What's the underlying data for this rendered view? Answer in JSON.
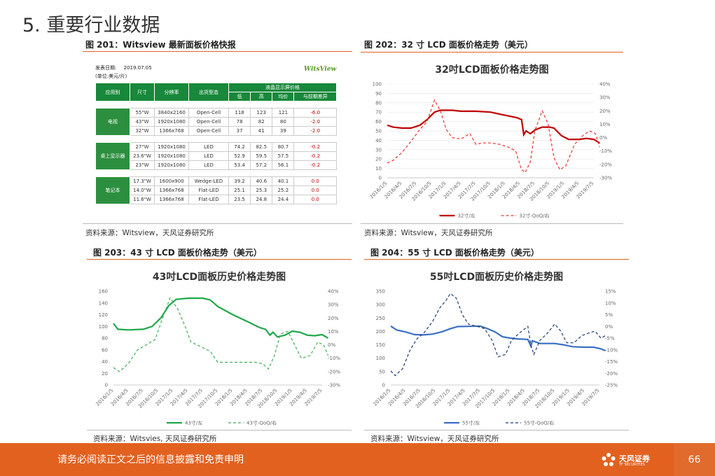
{
  "page_title": "5. 重要行业数据",
  "footer": {
    "disclaimer": "请务必阅读正文之后的信息披露和免责申明",
    "page_number": "66",
    "logo_cn": "天风证券",
    "logo_en": "TF SECURITIES"
  },
  "panels": {
    "fig201": {
      "title": "图 201：Witsview 最新面板价格快报",
      "source": "资料来源：Witsview，天风证券研究所"
    },
    "fig202": {
      "title": "图 202：32 寸 LCD 面板价格走势（美元）",
      "source": "资料来源：Witsview，天风证券研究所"
    },
    "fig203": {
      "title": "图 203：43 寸 LCD 面板价格走势（美元）",
      "source": "资料来源：Witsvies, 天风证券研究所"
    },
    "fig204": {
      "title": "图 204：55 寸 LCD 面板价格走势（美元）",
      "source": "资料来源：Witsview，天风证券研究所"
    }
  },
  "price_table": {
    "release_date_label": "发表日期:",
    "release_date": "2019.07.05",
    "unit": "(单位:美元/片)",
    "logo": "WitsView",
    "headers": [
      "应用别",
      "尺寸",
      "分辨率",
      "出货型态"
    ],
    "group_header": "液晶显示屏价格",
    "sub_headers": [
      "低",
      "高",
      "均价",
      "与前期差异"
    ],
    "groups": [
      {
        "name": "电视",
        "rows": [
          [
            "55\"W",
            "3840x2160",
            "Open-Cell",
            "118",
            "123",
            "121",
            "-6.0"
          ],
          [
            "43\"W",
            "1920x1080",
            "Open-Cell",
            "78",
            "82",
            "80",
            "-2.0"
          ],
          [
            "32\"W",
            "1366x768",
            "Open-Cell",
            "37",
            "41",
            "39",
            "-2.0"
          ]
        ]
      },
      {
        "name": "桌上显示器",
        "rows": [
          [
            "27\"W",
            "1920x1080",
            "LED",
            "74.2",
            "82.5",
            "80.7",
            "-0.2"
          ],
          [
            "23.6\"W",
            "1920x1080",
            "LED",
            "52.9",
            "59.5",
            "57.5",
            "-0.2"
          ],
          [
            "23\"W",
            "1920x1080",
            "LED",
            "53.4",
            "57.2",
            "56.1",
            "-0.2"
          ]
        ]
      },
      {
        "name": "笔记本",
        "rows": [
          [
            "17.3\"W",
            "1600x900",
            "Wedge-LED",
            "39.2",
            "40.6",
            "40.1",
            "0.0"
          ],
          [
            "14.0\"W",
            "1366x768",
            "Flat-LED",
            "25.1",
            "25.3",
            "25.2",
            "0.0"
          ],
          [
            "11.6\"W",
            "1366x768",
            "Flat-LED",
            "23.5",
            "24.8",
            "24.4",
            "0.0"
          ]
        ]
      }
    ]
  },
  "chart_data": [
    {
      "type": "line",
      "title": "32吋LCD面板价格走势图",
      "x_ticks": [
        "2016/1/5",
        "2016/4/5",
        "2016/7/5",
        "2016/10/5",
        "2017/1/5",
        "2017/4/5",
        "2017/7/5",
        "2017/10/5",
        "2018/1/5",
        "2018/4/5",
        "2018/7/5",
        "2018/10/5",
        "2019/1/5",
        "2019/4/5",
        "2019/7/5"
      ],
      "ylim": [
        0,
        100
      ],
      "y_ticks": [
        0,
        10,
        20,
        30,
        40,
        50,
        60,
        70,
        80,
        90,
        100
      ],
      "ylim2": [
        -30,
        40
      ],
      "y2_ticks": [
        "40%",
        "30%",
        "20%",
        "10%",
        "0%",
        "-10%",
        "-20%",
        "-30%"
      ],
      "grid": true,
      "legend": "bottom",
      "series": [
        {
          "name": "32寸/左",
          "axis": "left",
          "color": "#c00000",
          "dash": false,
          "points": [
            [
              0,
              56
            ],
            [
              0.4,
              54
            ],
            [
              1,
              53
            ],
            [
              1.6,
              53
            ],
            [
              2.2,
              56
            ],
            [
              2.7,
              62
            ],
            [
              3.2,
              70
            ],
            [
              3.6,
              72
            ],
            [
              4.4,
              72
            ],
            [
              5,
              71
            ],
            [
              6,
              71
            ],
            [
              7,
              70
            ],
            [
              7.6,
              68
            ],
            [
              8.2,
              66
            ],
            [
              8.8,
              64
            ],
            [
              9.1,
              62
            ],
            [
              9.25,
              46
            ],
            [
              9.4,
              50
            ],
            [
              9.7,
              47
            ],
            [
              10,
              51
            ],
            [
              10.5,
              54
            ],
            [
              11,
              54
            ],
            [
              11.3,
              53
            ],
            [
              11.8,
              45
            ],
            [
              12.3,
              41
            ],
            [
              13,
              41
            ],
            [
              13.5,
              42
            ],
            [
              14,
              41
            ],
            [
              14.4,
              37
            ]
          ]
        },
        {
          "name": "32寸-QoQ/右",
          "axis": "right",
          "color": "#e3342f",
          "dash": true,
          "points": [
            [
              0,
              -19
            ],
            [
              0.4,
              -17
            ],
            [
              1,
              -11
            ],
            [
              1.6,
              -3
            ],
            [
              2.2,
              6
            ],
            [
              2.7,
              12
            ],
            [
              3.2,
              28
            ],
            [
              3.6,
              20
            ],
            [
              4,
              6
            ],
            [
              4.4,
              0
            ],
            [
              5,
              -1
            ],
            [
              5.6,
              3
            ],
            [
              6,
              -5
            ],
            [
              6.5,
              -4
            ],
            [
              7,
              -4
            ],
            [
              7.6,
              -5
            ],
            [
              8.2,
              -7
            ],
            [
              8.7,
              -10
            ],
            [
              9.1,
              -24
            ],
            [
              9.35,
              -26
            ],
            [
              9.7,
              -18
            ],
            [
              10,
              5
            ],
            [
              10.5,
              20
            ],
            [
              10.9,
              10
            ],
            [
              11.3,
              -15
            ],
            [
              11.7,
              -24
            ],
            [
              12.1,
              -21
            ],
            [
              12.7,
              -5
            ],
            [
              13.2,
              1
            ],
            [
              13.7,
              5
            ],
            [
              14.1,
              3
            ],
            [
              14.4,
              -7
            ]
          ]
        }
      ]
    },
    {
      "type": "line",
      "title": "43吋LCD面板历史价格走势图",
      "x_ticks": [
        "2016/1/5",
        "2016/4/5",
        "2016/7/5",
        "2016/10/5",
        "2017/1/5",
        "2017/4/5",
        "2017/7/5",
        "2017/10/5",
        "2018/1/5",
        "2018/4/5",
        "2018/7/5",
        "2018/10/5",
        "2019/1/5",
        "2019/4/5",
        "2019/7/5"
      ],
      "ylim": [
        0,
        160
      ],
      "y_ticks": [
        0,
        20,
        40,
        60,
        80,
        100,
        120,
        140,
        160
      ],
      "ylim2": [
        -30,
        40
      ],
      "y2_ticks": [
        "40%",
        "30%",
        "20%",
        "10%",
        "0%",
        "-10%",
        "-20%",
        "-30%"
      ],
      "grid": false,
      "legend": "bottom",
      "series": [
        {
          "name": "43寸/左",
          "axis": "left",
          "color": "#1fa84a",
          "dash": false,
          "points": [
            [
              0,
              105
            ],
            [
              0.3,
              95
            ],
            [
              1,
              94
            ],
            [
              2,
              95
            ],
            [
              2.6,
              100
            ],
            [
              3.2,
              115
            ],
            [
              3.7,
              135
            ],
            [
              4.2,
              146
            ],
            [
              5,
              148
            ],
            [
              6,
              148
            ],
            [
              6.5,
              145
            ],
            [
              7,
              134
            ],
            [
              8,
              120
            ],
            [
              9,
              108
            ],
            [
              9.8,
              98
            ],
            [
              10.2,
              95
            ],
            [
              10.5,
              85
            ],
            [
              10.7,
              90
            ],
            [
              11,
              82
            ],
            [
              11.5,
              85
            ],
            [
              12,
              92
            ],
            [
              12.5,
              90
            ],
            [
              13,
              85
            ],
            [
              13.5,
              84
            ],
            [
              14,
              86
            ],
            [
              14.4,
              80
            ]
          ]
        },
        {
          "name": "43寸-QoQ/右",
          "axis": "right",
          "color": "#3dae58",
          "dash": true,
          "points": [
            [
              0,
              -17
            ],
            [
              0.4,
              -20
            ],
            [
              1,
              -14
            ],
            [
              1.6,
              -4
            ],
            [
              2.2,
              0
            ],
            [
              2.8,
              4
            ],
            [
              3.3,
              20
            ],
            [
              3.8,
              35
            ],
            [
              4.3,
              27
            ],
            [
              4.8,
              14
            ],
            [
              5.2,
              2
            ],
            [
              5.8,
              -1
            ],
            [
              6.5,
              -5
            ],
            [
              7,
              -13
            ],
            [
              7.6,
              -13
            ],
            [
              8.5,
              -13
            ],
            [
              9.5,
              -13
            ],
            [
              10,
              -14
            ],
            [
              10.4,
              -18
            ],
            [
              10.8,
              -8
            ],
            [
              11.2,
              8
            ],
            [
              11.7,
              10
            ],
            [
              12.2,
              -1
            ],
            [
              12.6,
              -10
            ],
            [
              13.2,
              -8
            ],
            [
              13.7,
              2
            ],
            [
              14.1,
              0
            ],
            [
              14.4,
              -8
            ]
          ]
        }
      ]
    },
    {
      "type": "line",
      "title": "55吋LCD面板历史价格走势图",
      "x_ticks": [
        "2016/1/5",
        "2016/4/5",
        "2016/7/5",
        "2016/10/5",
        "2017/1/5",
        "2017/4/5",
        "2017/7/5",
        "2017/10/5",
        "2018/1/5",
        "2018/4/5",
        "2018/7/5",
        "2018/10/5",
        "2019/1/5",
        "2019/4/5",
        "2019/7/5"
      ],
      "ylim": [
        0,
        350
      ],
      "y_ticks": [
        0,
        50,
        100,
        150,
        200,
        250,
        300,
        350
      ],
      "ylim2": [
        -25,
        15
      ],
      "y2_ticks": [
        "15%",
        "10%",
        "5%",
        "0%",
        "-5%",
        "-10%",
        "-15%",
        "-20%",
        "-25%"
      ],
      "grid": false,
      "legend": "bottom",
      "series": [
        {
          "name": "55寸/左",
          "axis": "left",
          "color": "#3a6fc4",
          "dash": false,
          "points": [
            [
              0,
              220
            ],
            [
              0.4,
              205
            ],
            [
              1,
              198
            ],
            [
              1.6,
              188
            ],
            [
              2.2,
              187
            ],
            [
              2.8,
              190
            ],
            [
              3.4,
              198
            ],
            [
              4,
              210
            ],
            [
              4.5,
              218
            ],
            [
              5.2,
              219
            ],
            [
              6,
              220
            ],
            [
              6.5,
              210
            ],
            [
              7,
              198
            ],
            [
              7.5,
              180
            ],
            [
              8,
              175
            ],
            [
              8.5,
              172
            ],
            [
              9.2,
              170
            ],
            [
              9.4,
              145
            ],
            [
              9.5,
              165
            ],
            [
              10,
              155
            ],
            [
              10.5,
              155
            ],
            [
              11,
              155
            ],
            [
              11.6,
              150
            ],
            [
              12.2,
              143
            ],
            [
              13,
              141
            ],
            [
              13.6,
              141
            ],
            [
              14.1,
              135
            ],
            [
              14.4,
              128
            ]
          ]
        },
        {
          "name": "55寸-QoQ/右",
          "axis": "right",
          "color": "#1f3b70",
          "dash": true,
          "points": [
            [
              0,
              -19
            ],
            [
              0.3,
              -21
            ],
            [
              0.8,
              -18
            ],
            [
              1.3,
              -10
            ],
            [
              1.8,
              -5
            ],
            [
              2.2,
              -3
            ],
            [
              2.8,
              2
            ],
            [
              3.3,
              8
            ],
            [
              3.7,
              11
            ],
            [
              4,
              14
            ],
            [
              4.4,
              12
            ],
            [
              4.8,
              5
            ],
            [
              5.2,
              1
            ],
            [
              5.8,
              0
            ],
            [
              6.3,
              -1
            ],
            [
              6.8,
              -6
            ],
            [
              7.2,
              -13
            ],
            [
              7.7,
              -12
            ],
            [
              8.1,
              -6
            ],
            [
              8.6,
              -3
            ],
            [
              9,
              -1
            ],
            [
              9.2,
              0
            ],
            [
              9.4,
              -8
            ],
            [
              9.6,
              -12
            ],
            [
              10,
              -6
            ],
            [
              10.5,
              -3
            ],
            [
              11,
              1
            ],
            [
              11.4,
              -2
            ],
            [
              11.8,
              -7
            ],
            [
              12.3,
              -7
            ],
            [
              12.8,
              -4
            ],
            [
              13.2,
              -3
            ],
            [
              13.7,
              -2
            ],
            [
              14.1,
              -5
            ],
            [
              14.4,
              -4
            ]
          ]
        }
      ]
    }
  ]
}
